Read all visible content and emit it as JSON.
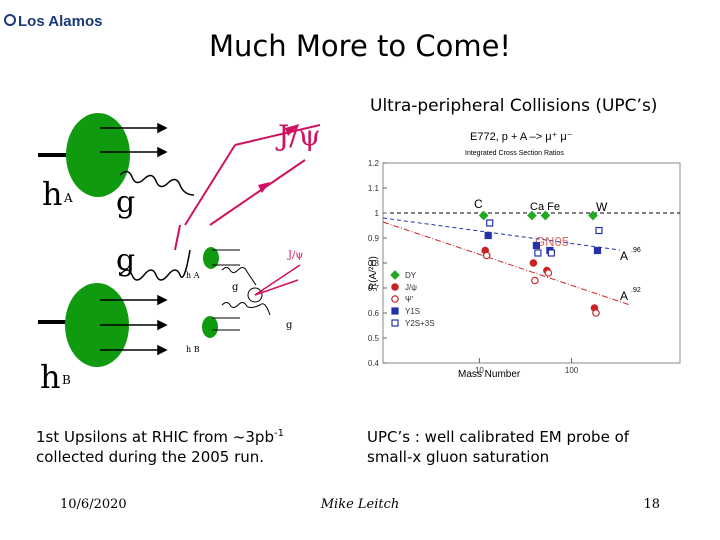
{
  "slide": {
    "logo": "Los Alamos",
    "title": "Much More to Come!",
    "subtitle": "Ultra-peripheral Collisions (UPC’s)",
    "left_text": {
      "line1": "1st Upsilons at RHIC from ~3pb",
      "sup": "-1",
      "line2": "collected during the 2005 run."
    },
    "right_text": {
      "line1": "UPC’s : well calibrated EM probe of",
      "line2": "small-x gluon saturation"
    },
    "footer": {
      "date": "10/6/2020",
      "author": "Mike Leitch",
      "page": "18"
    },
    "diagram": {
      "jpsi": "J/ψ",
      "h": "h",
      "a": "A",
      "b": "B",
      "g": "g",
      "small_jpsi": "J/ψ",
      "small_ha": "h A",
      "small_hb": "h B"
    }
  },
  "chart_data": {
    "type": "scatter",
    "title": "E772,  p + A –> μ⁺ μ⁻",
    "subtitle": "Integrated Cross Section Ratios",
    "x_label": "Mass Number",
    "y_label": "R(A/²H)",
    "log_x": true,
    "xlim": [
      0.9,
      1500
    ],
    "xticks": [
      10,
      100
    ],
    "ylim": [
      0.4,
      1.2
    ],
    "yticks": [
      0.4,
      0.5,
      0.6,
      0.7,
      0.8,
      0.9,
      1,
      1.1,
      1.2
    ],
    "x": [
      12,
      40,
      56,
      184
    ],
    "series": [
      {
        "name": "DY",
        "color": "#22aa22",
        "marker": "filled-diamond",
        "values": [
          0.99,
          0.99,
          0.99,
          0.99
        ]
      },
      {
        "name": "J/ψ",
        "color": "#cc2222",
        "marker": "filled-circle",
        "values": [
          0.85,
          0.8,
          0.77,
          0.62
        ]
      },
      {
        "name": "Ψ'",
        "color": "#cc2222",
        "marker": "open-circle",
        "values": [
          0.83,
          0.73,
          0.76,
          0.6
        ]
      },
      {
        "name": "Υ1S",
        "color": "#2233aa",
        "marker": "filled-square",
        "values": [
          0.91,
          0.87,
          0.85,
          0.85
        ]
      },
      {
        "name": "Υ2S+3S",
        "color": "#2233aa",
        "marker": "open-square",
        "values": [
          0.96,
          0.84,
          0.84,
          0.93
        ]
      }
    ],
    "annotations": {
      "c": "C",
      "cafe": "Ca Fe",
      "w": "W",
      "a1": "A",
      "a1_sup": ".96",
      "a2": "A",
      "a2_sup": ".92",
      "run": "GN05"
    }
  }
}
